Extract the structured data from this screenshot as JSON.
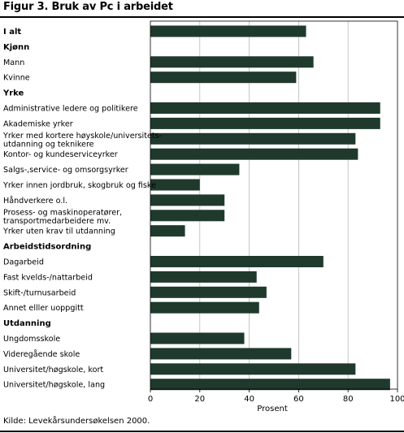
{
  "figure": {
    "title": "Figur 3.  Bruk av Pc i arbeidet",
    "source": "Kilde: Levekårsundersøkelsen 2000."
  },
  "chart_data": {
    "type": "bar",
    "orientation": "horizontal",
    "title": "Bruk av Pc i arbeidet",
    "xlabel": "Prosent",
    "ylabel": "",
    "xlim": [
      0,
      100
    ],
    "xticks": [
      0,
      20,
      40,
      60,
      80,
      100
    ],
    "grid": true,
    "legend": "none",
    "bar_color": "#1f3a2c",
    "rows": [
      {
        "label": "I alt",
        "header": true,
        "value": 63
      },
      {
        "label": "Kjønn",
        "header": true,
        "value": null
      },
      {
        "label": "Mann",
        "header": false,
        "value": 66
      },
      {
        "label": "Kvinne",
        "header": false,
        "value": 59
      },
      {
        "label": "Yrke",
        "header": true,
        "value": null
      },
      {
        "label": "Administrative ledere og politikere",
        "header": false,
        "value": 93
      },
      {
        "label": "Akademiske yrker",
        "header": false,
        "value": 93
      },
      {
        "label": "Yrker med kortere høyskole/universitets-|utdanning og teknikere",
        "header": false,
        "value": 83
      },
      {
        "label": "Kontor- og kundeserviceyrker",
        "header": false,
        "value": 84
      },
      {
        "label": "Salgs-,service- og omsorgsyrker",
        "header": false,
        "value": 36
      },
      {
        "label": "Yrker innen jordbruk, skogbruk og fiske",
        "header": false,
        "value": 20
      },
      {
        "label": "Håndverkere o.l.",
        "header": false,
        "value": 30
      },
      {
        "label": "Prosess- og maskinoperatører,|transportmedarbeidere mv.",
        "header": false,
        "value": 30
      },
      {
        "label": "Yrker uten krav til utdanning",
        "header": false,
        "value": 14
      },
      {
        "label": "Arbeidstidsordning",
        "header": true,
        "value": null
      },
      {
        "label": "Dagarbeid",
        "header": false,
        "value": 70
      },
      {
        "label": "Fast kvelds-/nattarbeid",
        "header": false,
        "value": 43
      },
      {
        "label": "Skift-/turnusarbeid",
        "header": false,
        "value": 47
      },
      {
        "label": "Annet elller uoppgitt",
        "header": false,
        "value": 44
      },
      {
        "label": "Utdanning",
        "header": true,
        "value": null
      },
      {
        "label": "Ungdomsskole",
        "header": false,
        "value": 38
      },
      {
        "label": "Videregående skole",
        "header": false,
        "value": 57
      },
      {
        "label": "Universitet/høgskole, kort",
        "header": false,
        "value": 83
      },
      {
        "label": "Universitet/høgskole, lang",
        "header": false,
        "value": 97
      }
    ]
  }
}
